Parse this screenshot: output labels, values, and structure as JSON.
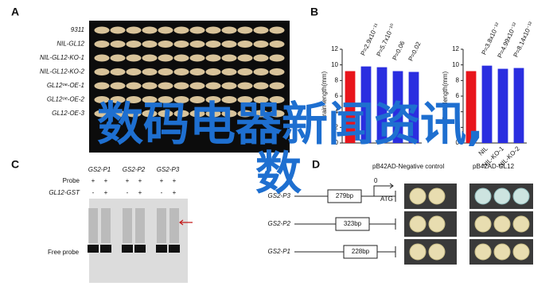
{
  "panel_labels": [
    "A",
    "B",
    "C",
    "D"
  ],
  "panel_a": {
    "rows": [
      "9311",
      "NIL-GL12",
      "NIL-GL12-KO-1",
      "NIL-GL12-KO-2",
      "GL12ᵒᵉ-OE-1",
      "GL12ᵒᵉ-OE-2",
      "GL12-OE-3"
    ]
  },
  "chart_data": [
    {
      "type": "bar",
      "y_label": "Grain length(mm)",
      "categories": [
        null,
        null,
        null,
        null,
        null
      ],
      "values": [
        9.2,
        9.8,
        9.7,
        9.2,
        9.1
      ],
      "colors": [
        "#e8141b",
        "#2a2ee0",
        "#2a2ee0",
        "#2a2ee0",
        "#2a2ee0"
      ],
      "annotations": [
        "P=2.9x10⁻¹¹",
        "P=5.7x10⁻¹⁰",
        "P=0.06",
        "P=0.02"
      ],
      "ylim": [
        0,
        12
      ],
      "yticks": [
        0,
        2,
        4,
        6,
        8,
        10,
        12
      ]
    },
    {
      "type": "bar",
      "y_label": "Grain length(mm)",
      "categories": [
        null,
        "NIL",
        "NIL-KO-1",
        "NIL-KO-2"
      ],
      "values": [
        9.2,
        9.9,
        9.5,
        9.6
      ],
      "colors": [
        "#e8141b",
        "#2a2ee0",
        "#2a2ee0",
        "#2a2ee0"
      ],
      "annotations": [
        "P=3.8x10⁻¹²",
        "P=4.99x10⁻¹²",
        "P=8.14x10⁻¹²"
      ],
      "ylim": [
        0,
        12
      ],
      "yticks": [
        0,
        2,
        4,
        6,
        8,
        10,
        12
      ]
    }
  ],
  "panel_c": {
    "columns": [
      "GS2-P1",
      "GS2-P2",
      "GS2-P3"
    ],
    "probe_label": "Probe",
    "protein_label": "GL12-GST",
    "probe_signs": [
      "+",
      "+",
      "+",
      "+",
      "+",
      "+"
    ],
    "protein_signs": [
      "-",
      "+",
      "-",
      "+",
      "-",
      "+"
    ],
    "free_probe": "Free probe"
  },
  "panel_d": {
    "header_negative": "pB42AD-Negative control",
    "header_gl12": "pB42AD-GL12",
    "rows": [
      {
        "name": "GS2-P3",
        "length": "279bp"
      },
      {
        "name": "GS2-P2",
        "length": "323bp"
      },
      {
        "name": "GS2-P1",
        "length": "228bp"
      }
    ],
    "start": "0",
    "atg": "ATG"
  },
  "overlay": {
    "line1": "数码电器新闻资讯,",
    "line2": "数"
  }
}
